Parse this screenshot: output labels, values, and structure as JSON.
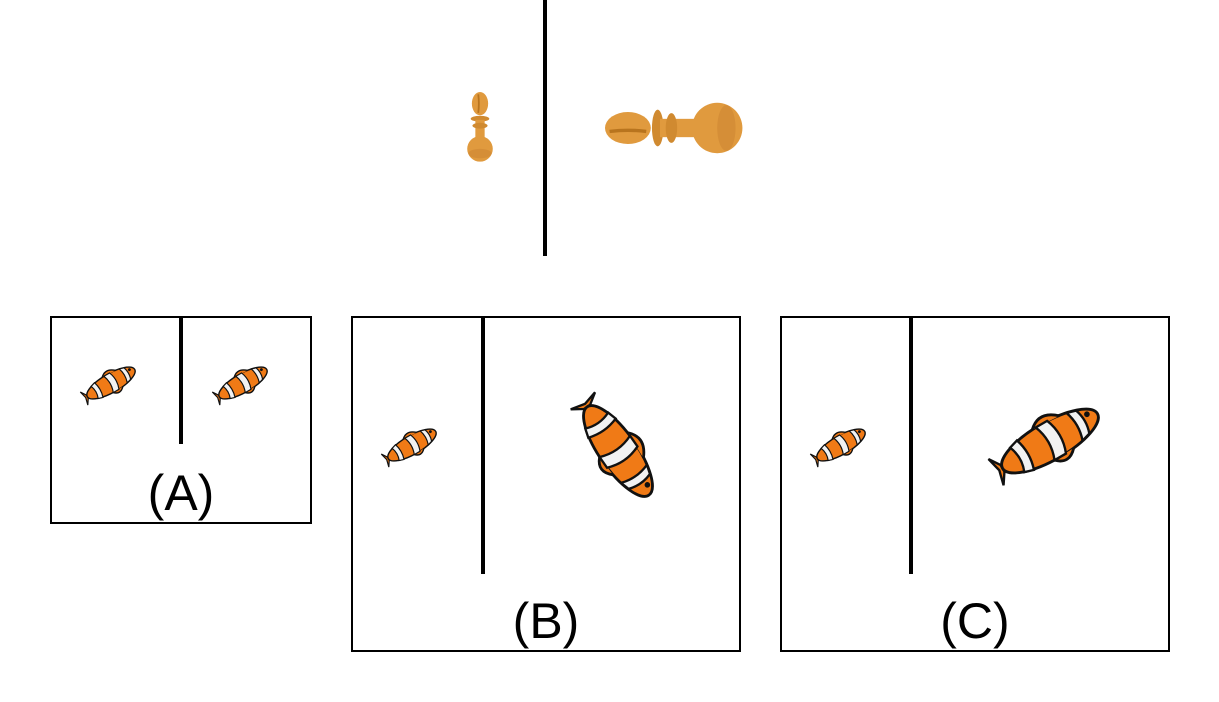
{
  "options": [
    {
      "id": "A",
      "label": "(A)"
    },
    {
      "id": "B",
      "label": "(B)"
    },
    {
      "id": "C",
      "label": "(C)"
    }
  ],
  "colors": {
    "pawn_orange": "#E09A3E",
    "pawn_shadow": "#B8741E",
    "fish_orange": "#F07A16",
    "fish_white": "#F2F2F2",
    "fish_black": "#111111",
    "line": "#000000"
  },
  "objects": {
    "top_left": "small-upright-pawn-icon",
    "top_right": "large-sideways-pawn-icon",
    "fish": "clownfish-icon"
  }
}
